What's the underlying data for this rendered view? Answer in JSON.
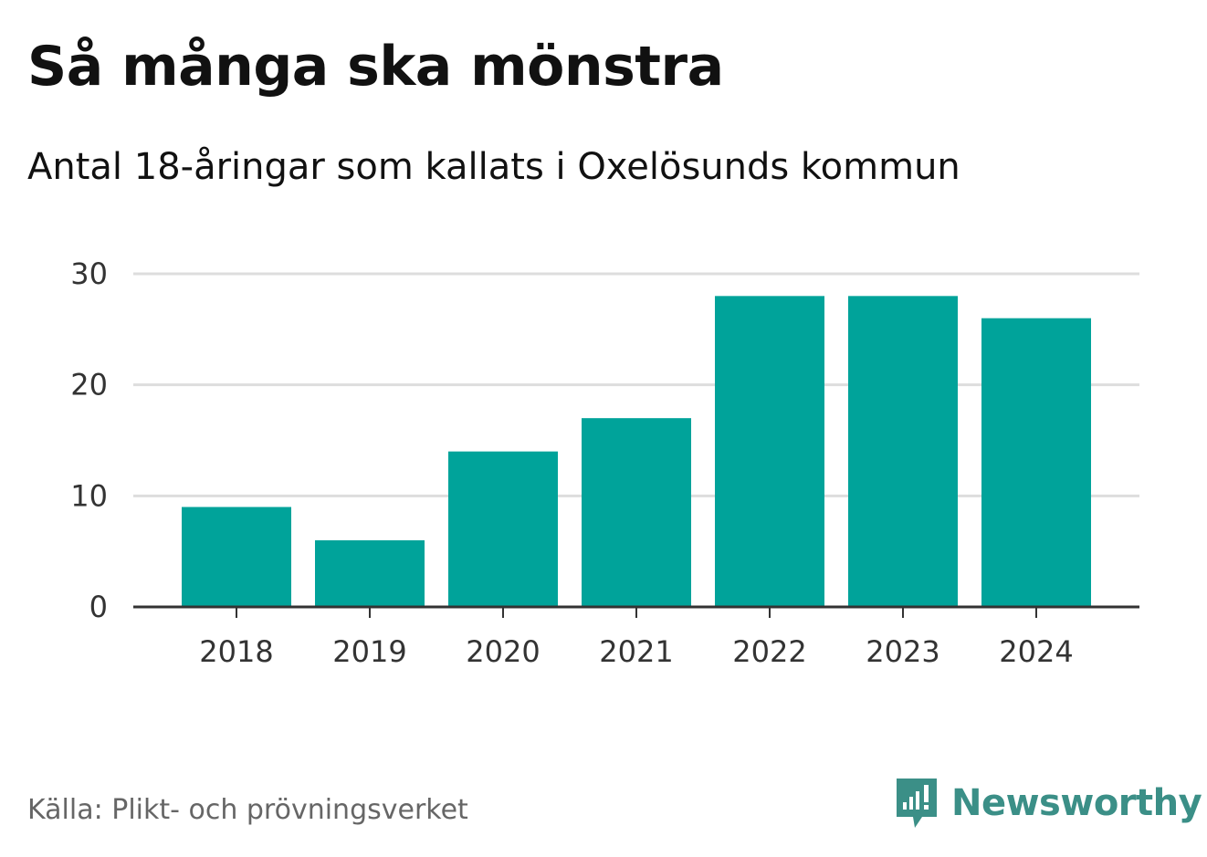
{
  "chart_data": {
    "type": "bar",
    "title": "Så många ska mönstra",
    "subtitle": "Antal 18-åringar som kallats i Oxelösunds kommun",
    "categories": [
      "2018",
      "2019",
      "2020",
      "2021",
      "2022",
      "2023",
      "2024"
    ],
    "values": [
      9,
      6,
      14,
      17,
      28,
      28,
      26
    ],
    "ylim": [
      0,
      30
    ],
    "yticks": [
      0,
      10,
      20,
      30
    ],
    "xlabel": "",
    "ylabel": "",
    "grid": true,
    "bar_color": "#00a39a"
  },
  "footer": {
    "source": "Källa: Plikt- och prövningsverket",
    "brand": "Newsworthy",
    "brand_icon": "newsworthy-logo-icon",
    "brand_color": "#3b8f87"
  }
}
